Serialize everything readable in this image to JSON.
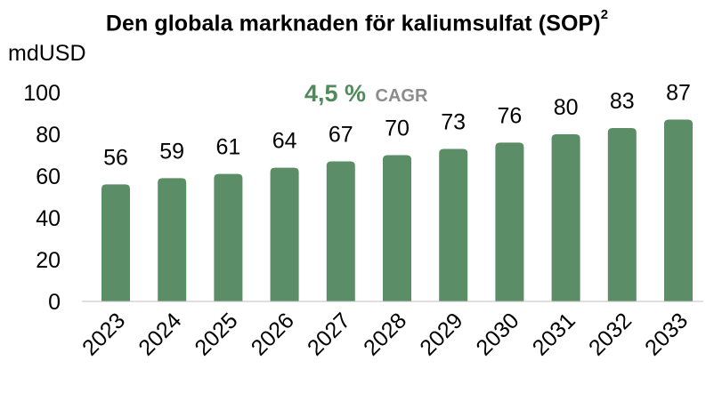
{
  "title": "Den globala marknaden för kaliumsulfat (SOP)",
  "title_superscript": "2",
  "unit": "mdUSD",
  "annotation": {
    "value": "4,5 %",
    "label": "CAGR",
    "value_color": "#4F8A5B",
    "label_color": "#8C8C8C"
  },
  "colors": {
    "bar": "#5B8D66",
    "axis": "#BFBFBF"
  },
  "chart_data": {
    "type": "bar",
    "categories": [
      "2023",
      "2024",
      "2025",
      "2026",
      "2027",
      "2028",
      "2029",
      "2030",
      "2031",
      "2032",
      "2033"
    ],
    "values": [
      56,
      59,
      61,
      64,
      67,
      70,
      73,
      76,
      80,
      83,
      87
    ],
    "ylim": [
      0,
      100
    ],
    "yticks": [
      0,
      20,
      40,
      60,
      80,
      100
    ],
    "grid": false,
    "data_labels": true
  }
}
